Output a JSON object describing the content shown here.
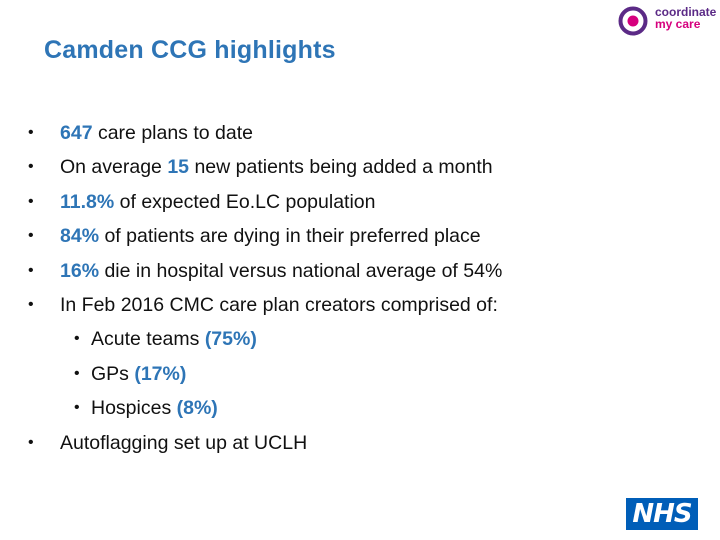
{
  "slide": {
    "title": "Camden CCG highlights",
    "logo": {
      "line1": "coordinate",
      "line2": "my care",
      "icon": "cmc-ring-logo-icon",
      "colors": {
        "purple": "#5b2a86",
        "pink": "#d6007e"
      }
    },
    "nhs_logo": {
      "text": "NHS",
      "color": "#005eb8",
      "icon": "nhs-logo-icon"
    },
    "accent_color": "#2e75b6",
    "bullets": [
      {
        "level": 1,
        "parts": [
          {
            "text": "647",
            "hl": true
          },
          {
            "text": " care plans to date",
            "hl": false
          }
        ]
      },
      {
        "level": 1,
        "parts": [
          {
            "text": "On average ",
            "hl": false
          },
          {
            "text": "15",
            "hl": true
          },
          {
            "text": " new patients being added a month",
            "hl": false
          }
        ]
      },
      {
        "level": 1,
        "parts": [
          {
            "text": "11.8%",
            "hl": true
          },
          {
            "text": " of expected Eo.LC population",
            "hl": false
          }
        ]
      },
      {
        "level": 1,
        "parts": [
          {
            "text": "84%",
            "hl": true
          },
          {
            "text": " of patients are dying in their preferred place",
            "hl": false
          }
        ]
      },
      {
        "level": 1,
        "parts": [
          {
            "text": "16%",
            "hl": true
          },
          {
            "text": " die in hospital versus national average of 54%",
            "hl": false
          }
        ]
      },
      {
        "level": 1,
        "parts": [
          {
            "text": "In Feb 2016 CMC care plan creators comprised of:",
            "hl": false
          }
        ]
      },
      {
        "level": 2,
        "parts": [
          {
            "text": "Acute teams ",
            "hl": false
          },
          {
            "text": "(75%)",
            "hl": true
          }
        ]
      },
      {
        "level": 2,
        "parts": [
          {
            "text": "GPs ",
            "hl": false
          },
          {
            "text": "(17%)",
            "hl": true
          }
        ]
      },
      {
        "level": 2,
        "parts": [
          {
            "text": "Hospices ",
            "hl": false
          },
          {
            "text": "(8%)",
            "hl": true
          }
        ]
      },
      {
        "level": 1,
        "parts": [
          {
            "text": "Autoflagging set up at UCLH",
            "hl": false
          }
        ]
      }
    ]
  }
}
